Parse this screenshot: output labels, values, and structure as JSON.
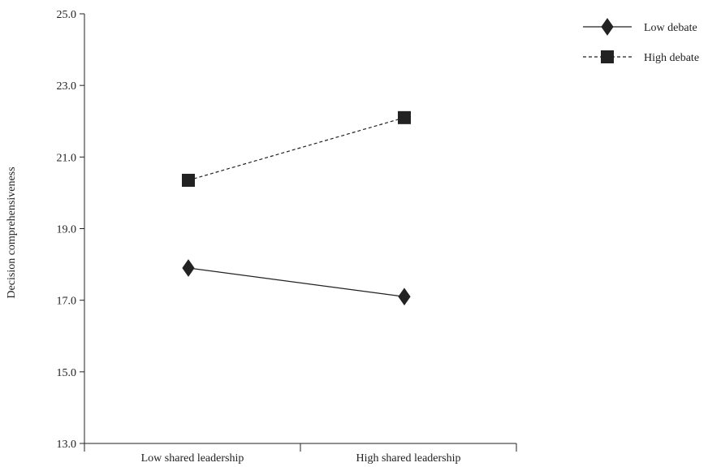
{
  "chart_data": {
    "type": "line",
    "title": "",
    "xlabel": "",
    "ylabel": "Decision comprehensiveness",
    "categories": [
      "Low shared leadership",
      "High shared leadership"
    ],
    "ylim": [
      13.0,
      25.0
    ],
    "yticks": [
      "13.0",
      "15.0",
      "17.0",
      "19.0",
      "21.0",
      "23.0",
      "25.0"
    ],
    "grid": false,
    "legend_position": "top-right",
    "series": [
      {
        "name": "Low debate",
        "values": [
          17.9,
          17.1
        ],
        "line_style": "solid",
        "marker": "diamond",
        "color": "#222222"
      },
      {
        "name": "High debate",
        "values": [
          20.35,
          22.1
        ],
        "line_style": "dashed",
        "marker": "square",
        "color": "#222222"
      }
    ]
  }
}
